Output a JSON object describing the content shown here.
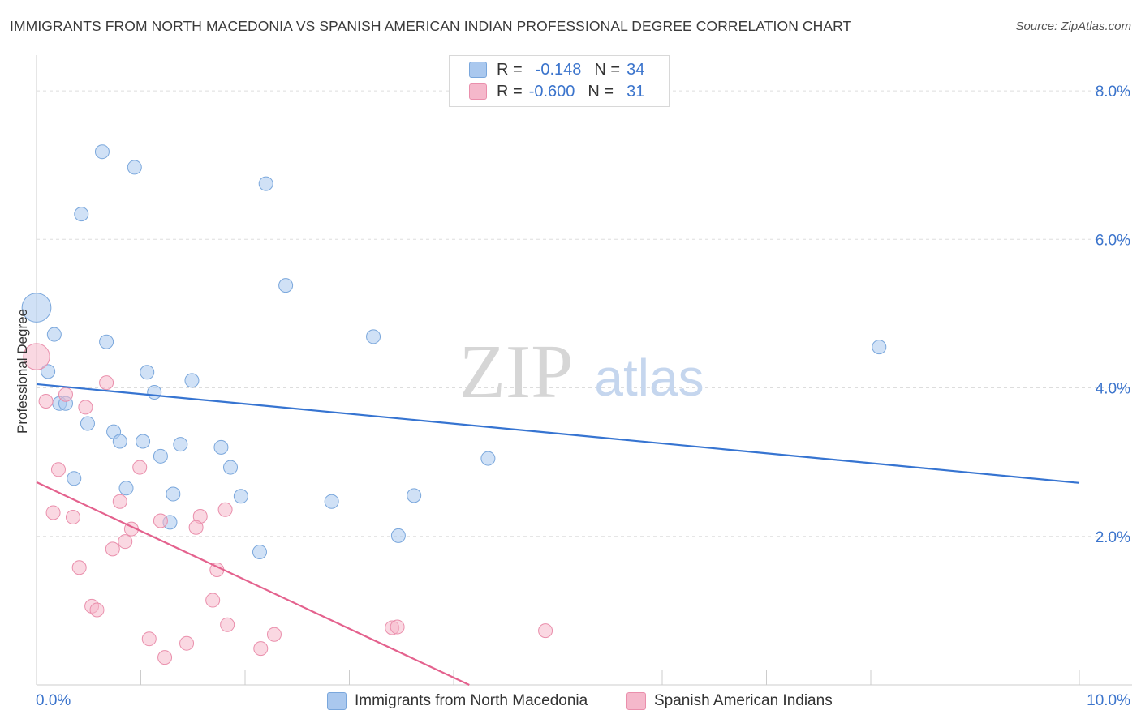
{
  "title": "IMMIGRANTS FROM NORTH MACEDONIA VS SPANISH AMERICAN INDIAN PROFESSIONAL DEGREE CORRELATION CHART",
  "source": "Source: ZipAtlas.com",
  "watermark": {
    "zip": "ZIP",
    "atlas": "atlas"
  },
  "legend": {
    "rows": [
      {
        "r_label": "R =",
        "r_value": "-0.148",
        "n_label": "N =",
        "n_value": "34"
      },
      {
        "r_label": "R =",
        "r_value": "-0.600",
        "n_label": "N =",
        "n_value": "31"
      }
    ]
  },
  "colors": {
    "blue_fill": "#aac8ee",
    "blue_stroke": "#7aa7dc",
    "blue_line": "#3674d1",
    "pink_fill": "#f5b8cb",
    "pink_stroke": "#ea8fac",
    "pink_line": "#e4628e",
    "tick_label": "#3b74cc",
    "grid": "#dddddd"
  },
  "chart_data": {
    "type": "scatter",
    "ylabel": "Professional Degree",
    "xlabel": "",
    "xlim": [
      0,
      10
    ],
    "ylim": [
      0,
      8.35
    ],
    "x_tick_labels": [
      {
        "value": 0,
        "label": "0.0%"
      },
      {
        "value": 10,
        "label": "10.0%"
      }
    ],
    "y_tick_labels": [
      {
        "value": 2,
        "label": "2.0%"
      },
      {
        "value": 4,
        "label": "4.0%"
      },
      {
        "value": 6,
        "label": "6.0%"
      },
      {
        "value": 8,
        "label": "8.0%"
      }
    ],
    "series": [
      {
        "name": "Immigrants from North Macedonia",
        "color": "blue",
        "r": -0.148,
        "n": 34,
        "trend": {
          "x": [
            0,
            10
          ],
          "y": [
            4.05,
            2.72
          ]
        },
        "points": [
          {
            "x": 0.63,
            "y": 7.18,
            "s": 1
          },
          {
            "x": 0.94,
            "y": 6.97,
            "s": 1
          },
          {
            "x": 0.43,
            "y": 6.34,
            "s": 1
          },
          {
            "x": 2.2,
            "y": 6.75,
            "s": 1
          },
          {
            "x": 2.39,
            "y": 5.38,
            "s": 1
          },
          {
            "x": 0.0,
            "y": 5.08,
            "s": 2.1
          },
          {
            "x": 0.17,
            "y": 4.72,
            "s": 1
          },
          {
            "x": 0.67,
            "y": 4.62,
            "s": 1
          },
          {
            "x": 3.23,
            "y": 4.69,
            "s": 1
          },
          {
            "x": 8.08,
            "y": 4.55,
            "s": 1
          },
          {
            "x": 0.11,
            "y": 4.22,
            "s": 1
          },
          {
            "x": 1.06,
            "y": 4.21,
            "s": 1
          },
          {
            "x": 1.49,
            "y": 4.1,
            "s": 1
          },
          {
            "x": 1.13,
            "y": 3.94,
            "s": 1
          },
          {
            "x": 0.22,
            "y": 3.79,
            "s": 1
          },
          {
            "x": 0.28,
            "y": 3.79,
            "s": 1
          },
          {
            "x": 0.49,
            "y": 3.52,
            "s": 1
          },
          {
            "x": 0.74,
            "y": 3.41,
            "s": 1
          },
          {
            "x": 0.8,
            "y": 3.28,
            "s": 1
          },
          {
            "x": 1.02,
            "y": 3.28,
            "s": 1
          },
          {
            "x": 1.38,
            "y": 3.24,
            "s": 1
          },
          {
            "x": 1.77,
            "y": 3.2,
            "s": 1
          },
          {
            "x": 1.19,
            "y": 3.08,
            "s": 1
          },
          {
            "x": 4.33,
            "y": 3.05,
            "s": 1
          },
          {
            "x": 1.86,
            "y": 2.93,
            "s": 1
          },
          {
            "x": 0.36,
            "y": 2.78,
            "s": 1
          },
          {
            "x": 0.86,
            "y": 2.65,
            "s": 1
          },
          {
            "x": 1.31,
            "y": 2.57,
            "s": 1
          },
          {
            "x": 1.96,
            "y": 2.54,
            "s": 1
          },
          {
            "x": 3.62,
            "y": 2.55,
            "s": 1
          },
          {
            "x": 2.83,
            "y": 2.47,
            "s": 1
          },
          {
            "x": 1.28,
            "y": 2.19,
            "s": 1
          },
          {
            "x": 3.47,
            "y": 2.01,
            "s": 1
          },
          {
            "x": 2.14,
            "y": 1.79,
            "s": 1
          }
        ]
      },
      {
        "name": "Spanish American Indians",
        "color": "pink",
        "r": -0.6,
        "n": 31,
        "trend": {
          "x": [
            0,
            4.15
          ],
          "y": [
            2.73,
            0.0
          ]
        },
        "points": [
          {
            "x": 0.0,
            "y": 4.42,
            "s": 1.9
          },
          {
            "x": 0.67,
            "y": 4.07,
            "s": 1
          },
          {
            "x": 0.28,
            "y": 3.91,
            "s": 1
          },
          {
            "x": 0.09,
            "y": 3.82,
            "s": 1
          },
          {
            "x": 0.47,
            "y": 3.74,
            "s": 1
          },
          {
            "x": 0.99,
            "y": 2.93,
            "s": 1
          },
          {
            "x": 0.21,
            "y": 2.9,
            "s": 1
          },
          {
            "x": 0.8,
            "y": 2.47,
            "s": 1
          },
          {
            "x": 0.16,
            "y": 2.32,
            "s": 1
          },
          {
            "x": 0.35,
            "y": 2.26,
            "s": 1
          },
          {
            "x": 1.57,
            "y": 2.27,
            "s": 1
          },
          {
            "x": 1.81,
            "y": 2.36,
            "s": 1
          },
          {
            "x": 1.19,
            "y": 2.21,
            "s": 1
          },
          {
            "x": 1.53,
            "y": 2.12,
            "s": 1
          },
          {
            "x": 0.91,
            "y": 2.1,
            "s": 1
          },
          {
            "x": 0.85,
            "y": 1.93,
            "s": 1
          },
          {
            "x": 0.73,
            "y": 1.83,
            "s": 1
          },
          {
            "x": 0.41,
            "y": 1.58,
            "s": 1
          },
          {
            "x": 1.73,
            "y": 1.55,
            "s": 1
          },
          {
            "x": 1.69,
            "y": 1.14,
            "s": 1
          },
          {
            "x": 0.53,
            "y": 1.06,
            "s": 1
          },
          {
            "x": 0.58,
            "y": 1.01,
            "s": 1
          },
          {
            "x": 1.83,
            "y": 0.81,
            "s": 1
          },
          {
            "x": 3.41,
            "y": 0.77,
            "s": 1
          },
          {
            "x": 3.46,
            "y": 0.78,
            "s": 1
          },
          {
            "x": 4.88,
            "y": 0.73,
            "s": 1
          },
          {
            "x": 2.28,
            "y": 0.68,
            "s": 1
          },
          {
            "x": 1.08,
            "y": 0.62,
            "s": 1
          },
          {
            "x": 1.44,
            "y": 0.56,
            "s": 1
          },
          {
            "x": 2.15,
            "y": 0.49,
            "s": 1
          },
          {
            "x": 1.23,
            "y": 0.37,
            "s": 1
          }
        ]
      }
    ]
  }
}
